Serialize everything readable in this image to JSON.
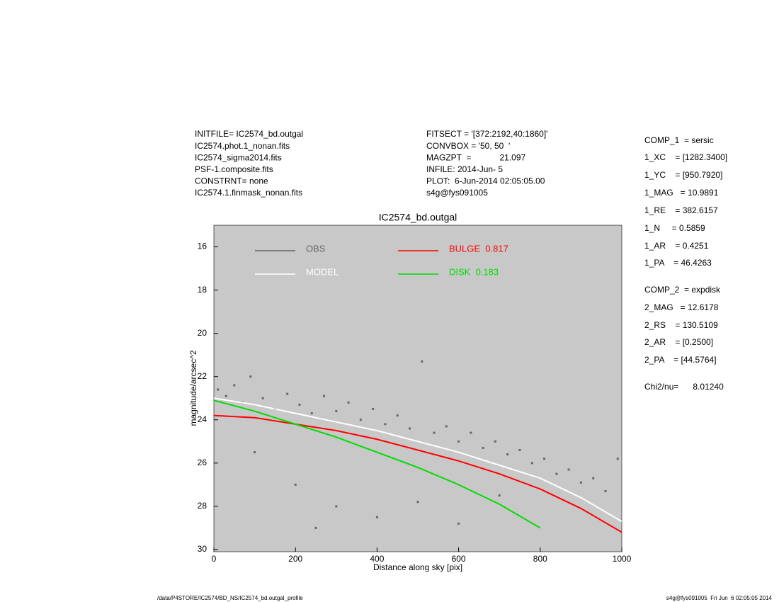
{
  "header": {
    "left": [
      "INITFILE= IC2574_bd.outgal",
      "IC2574.phot.1_nonan.fits",
      "IC2574_sigma2014.fits",
      "PSF-1.composite.fits",
      "CONSTRNT= none",
      "IC2574.1.finmask_nonan.fits"
    ],
    "middle": [
      "FITSECT = '[372:2192,40:1860]'",
      "CONVBOX = '50, 50  '",
      "MAGZPT  =            21.097",
      "INFILE: 2014-Jun- 5",
      "PLOT:  6-Jun-2014 02:05:05.00",
      "s4g@fys091005"
    ]
  },
  "params": [
    "COMP_1  = sersic",
    "1_XC    = [1282.3400]",
    "1_YC    = [950.7920]",
    "1_MAG   = 10.9891",
    "1_RE    = 382.6157",
    "1_N     = 0.5859",
    "1_AR    = 0.4251",
    "1_PA    = 46.4263",
    "COMP_2  = expdisk",
    "2_MAG   = 12.6178",
    "2_RS    = 130.5109",
    "2_AR    = [0.2500]",
    "2_PA    = [44.5764]",
    "Chi2/nu=      8.01240"
  ],
  "footer": {
    "left": "/data/P4STORE/IC2574/BD_NS/IC2574_bd.outgal_profile",
    "right": "s4g@fys091005  Fri Jun  6 02:05:05 2014"
  },
  "chart_data": {
    "type": "scatter",
    "title": "IC2574_bd.outgal",
    "x_label": "Distance along sky [pix]",
    "y_label": "magnitude/arcsec^2",
    "xlim": [
      0,
      1000
    ],
    "ylim": [
      15,
      30.1
    ],
    "y_inverted": true,
    "xticks": [
      0,
      200,
      400,
      600,
      800,
      1000
    ],
    "yticks": [
      16,
      18,
      20,
      22,
      24,
      26,
      28,
      30
    ],
    "background": "#c8c8c8",
    "series": [
      {
        "name": "OBS",
        "color": "#666666",
        "mode": "points",
        "x": [
          10,
          30,
          50,
          70,
          90,
          120,
          150,
          180,
          210,
          240,
          270,
          300,
          330,
          360,
          390,
          420,
          450,
          480,
          510,
          540,
          570,
          600,
          630,
          660,
          690,
          720,
          750,
          780,
          810,
          840,
          870,
          900,
          930,
          960,
          990,
          100,
          200,
          300,
          400,
          500,
          600,
          700,
          250
        ],
        "values": [
          22.6,
          22.9,
          22.4,
          23.2,
          22.0,
          23.0,
          23.5,
          22.8,
          23.3,
          23.7,
          22.9,
          23.6,
          23.2,
          24.0,
          23.5,
          24.2,
          23.8,
          24.4,
          21.3,
          24.6,
          24.3,
          25.0,
          24.6,
          25.3,
          25.0,
          25.6,
          25.4,
          26.0,
          25.8,
          26.5,
          26.3,
          26.9,
          26.7,
          27.3,
          25.8,
          25.5,
          27.0,
          28.0,
          28.5,
          27.8,
          28.8,
          27.5,
          29.0
        ]
      },
      {
        "name": "MODEL",
        "color": "#ffffff",
        "mode": "line",
        "x": [
          0,
          100,
          200,
          300,
          400,
          500,
          600,
          700,
          800,
          900,
          1000
        ],
        "values": [
          23.0,
          23.3,
          23.7,
          24.1,
          24.5,
          25.0,
          25.5,
          26.1,
          26.7,
          27.6,
          28.7
        ]
      },
      {
        "name": "BULGE  0.817",
        "color": "#ff0000",
        "mode": "line",
        "x": [
          0,
          100,
          200,
          300,
          400,
          500,
          600,
          700,
          800,
          900,
          1000
        ],
        "values": [
          23.8,
          23.9,
          24.2,
          24.5,
          24.9,
          25.4,
          25.9,
          26.5,
          27.2,
          28.1,
          29.2
        ]
      },
      {
        "name": "DISK  0.183",
        "color": "#00dd00",
        "mode": "line",
        "x": [
          0,
          100,
          200,
          300,
          400,
          500,
          600,
          700,
          800,
          900,
          1000
        ],
        "values": [
          23.1,
          23.6,
          24.2,
          24.8,
          25.5,
          26.2,
          27.0,
          27.9,
          29.0,
          null,
          null
        ]
      }
    ]
  }
}
